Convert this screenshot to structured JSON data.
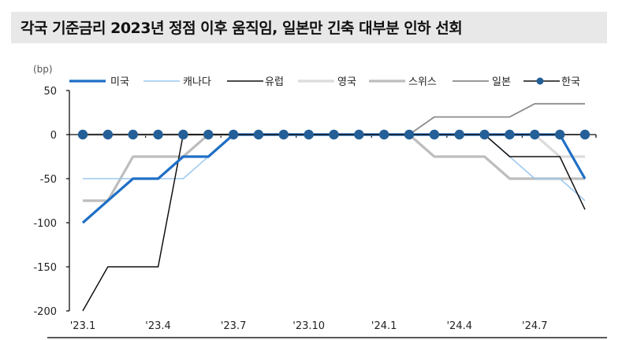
{
  "title": "각국 기준금리 2023년 정점 이후 움직임, 일본만 긴축 대부분 인하 선회",
  "chart_data": {
    "type": "line",
    "title": "각국 기준금리 2023년 정점 이후 움직임, 일본만 긴축 대부분 인하 선회",
    "ylabel": "(bp)",
    "xlabel": "",
    "ylim": [
      -200,
      50
    ],
    "yticks": [
      50,
      0,
      -50,
      -100,
      -150,
      -200
    ],
    "x": [
      "'23.1",
      "'23.2",
      "'23.3",
      "'23.4",
      "'23.5",
      "'23.6",
      "'23.7",
      "'23.8",
      "'23.9",
      "'23.10",
      "'23.11",
      "'23.12",
      "'24.1",
      "'24.2",
      "'24.3",
      "'24.4",
      "'24.5",
      "'24.6",
      "'24.7",
      "'24.8",
      "'24.9"
    ],
    "xtick_labels": [
      "'23.1",
      "'23.4",
      "'23.7",
      "'23.10",
      "'24.1",
      "'24.4",
      "'24.7"
    ],
    "legend_position": "top",
    "grid": false,
    "series": [
      {
        "name": "미국",
        "color": "#1f6fc5",
        "width": 3.2,
        "values": [
          -100,
          -75,
          -50,
          -50,
          -25,
          -25,
          0,
          0,
          0,
          0,
          0,
          0,
          0,
          0,
          0,
          0,
          0,
          0,
          0,
          0,
          -50
        ]
      },
      {
        "name": "캐나다",
        "color": "#9dc8f0",
        "width": 1.5,
        "values": [
          -50,
          -50,
          -50,
          -50,
          -50,
          -25,
          0,
          0,
          0,
          0,
          0,
          0,
          0,
          0,
          0,
          0,
          0,
          -25,
          -50,
          -50,
          -75
        ]
      },
      {
        "name": "유럽",
        "color": "#111111",
        "width": 1.5,
        "values": [
          -200,
          -150,
          -150,
          -150,
          0,
          0,
          0,
          0,
          0,
          0,
          0,
          0,
          0,
          0,
          0,
          0,
          0,
          -25,
          -25,
          -25,
          -85
        ]
      },
      {
        "name": "영국",
        "color": "#dcdcdc",
        "width": 3.2,
        "values": [
          0,
          0,
          0,
          0,
          0,
          0,
          0,
          0,
          0,
          0,
          0,
          0,
          0,
          0,
          0,
          0,
          0,
          0,
          0,
          -25,
          -25
        ]
      },
      {
        "name": "스위스",
        "color": "#bdbdbd",
        "width": 3.2,
        "values": [
          -75,
          -75,
          -25,
          -25,
          -25,
          0,
          0,
          0,
          0,
          0,
          0,
          0,
          0,
          0,
          -25,
          -25,
          -25,
          -50,
          -50,
          -50,
          -50
        ]
      },
      {
        "name": "일본",
        "color": "#8c8c8c",
        "width": 1.8,
        "values": [
          0,
          0,
          0,
          0,
          0,
          0,
          0,
          0,
          0,
          0,
          0,
          0,
          0,
          0,
          20,
          20,
          20,
          20,
          35,
          35,
          35
        ]
      },
      {
        "name": "한국",
        "color": "#245f97",
        "width": 1.5,
        "marker": "circle",
        "values": [
          0,
          0,
          0,
          0,
          0,
          0,
          0,
          0,
          0,
          0,
          0,
          0,
          0,
          0,
          0,
          0,
          0,
          0,
          0,
          0,
          0
        ]
      }
    ]
  }
}
